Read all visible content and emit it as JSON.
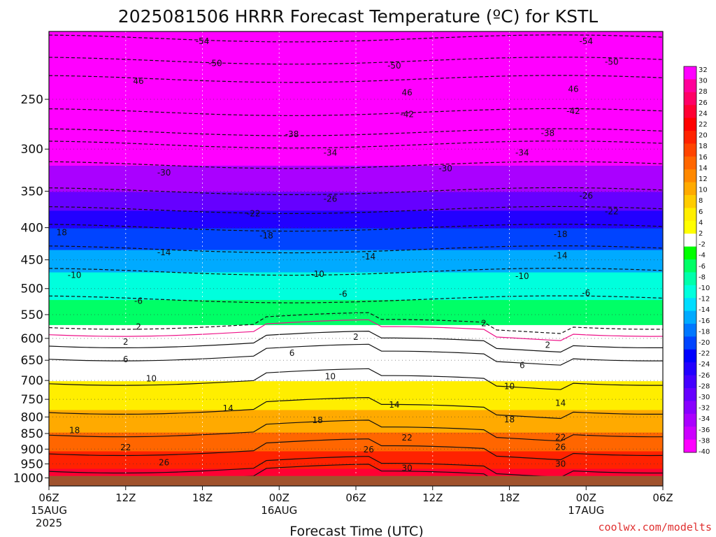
{
  "chart_data": {
    "type": "heatmap",
    "title": "2025081506 HRRR Forecast Temperature (ºC) for KSTL",
    "xlabel": "Forecast Time (UTC)",
    "ylabel": "",
    "x_ticks": [
      {
        "hour": 0,
        "label": "06Z",
        "sub": "15AUG",
        "sub2": "2025"
      },
      {
        "hour": 6,
        "label": "12Z",
        "sub": "",
        "sub2": ""
      },
      {
        "hour": 12,
        "label": "18Z",
        "sub": "",
        "sub2": ""
      },
      {
        "hour": 18,
        "label": "00Z",
        "sub": "16AUG",
        "sub2": ""
      },
      {
        "hour": 24,
        "label": "06Z",
        "sub": "",
        "sub2": ""
      },
      {
        "hour": 30,
        "label": "12Z",
        "sub": "",
        "sub2": ""
      },
      {
        "hour": 36,
        "label": "18Z",
        "sub": "",
        "sub2": ""
      },
      {
        "hour": 42,
        "label": "00Z",
        "sub": "17AUG",
        "sub2": ""
      },
      {
        "hour": 48,
        "label": "06Z",
        "sub": "",
        "sub2": ""
      }
    ],
    "xlim": [
      0,
      48
    ],
    "y_ticks": [
      250,
      300,
      350,
      400,
      450,
      500,
      550,
      600,
      650,
      700,
      750,
      800,
      850,
      900,
      950,
      1000
    ],
    "y_scale": "log-pressure",
    "ylim": [
      1030,
      195
    ],
    "ground_pressure": 993,
    "colorbar_levels": [
      32,
      30,
      28,
      26,
      24,
      22,
      20,
      18,
      16,
      14,
      12,
      10,
      8,
      6,
      4,
      2,
      -2,
      -4,
      -6,
      -8,
      -10,
      -12,
      -14,
      -16,
      -18,
      -20,
      -22,
      -24,
      -26,
      -28,
      -30,
      -32,
      -34,
      -36,
      -38,
      -40
    ],
    "colorbar_colors": [
      "#ff00ff",
      "#ff0099",
      "#ff0066",
      "#ff0033",
      "#ff0000",
      "#ff2200",
      "#ff4400",
      "#ff6600",
      "#ff8800",
      "#ffaa00",
      "#ffcc00",
      "#ffee00",
      "#ffff00",
      "#ffffff",
      "#00ff00",
      "#00ff66",
      "#00ffaa",
      "#00ffdd",
      "#00ddff",
      "#00aaff",
      "#0077ff",
      "#0044ff",
      "#0000ff",
      "#2200ff",
      "#4400ff",
      "#6600ff",
      "#8800ff",
      "#aa00ff",
      "#cc00ff",
      "#ff00ff"
    ],
    "isotherm_profile_hour0": [
      {
        "t": 30,
        "p": 993
      },
      {
        "t": 26,
        "p": 965
      },
      {
        "t": 22,
        "p": 905
      },
      {
        "t": 18,
        "p": 845
      },
      {
        "t": 14,
        "p": 778
      },
      {
        "t": 10,
        "p": 700
      },
      {
        "t": 6,
        "p": 640
      },
      {
        "t": 2,
        "p": 610
      },
      {
        "t": 0,
        "p": 585
      },
      {
        "t": -2,
        "p": 570
      },
      {
        "t": -6,
        "p": 520
      },
      {
        "t": -10,
        "p": 470
      },
      {
        "t": -14,
        "p": 433
      },
      {
        "t": -18,
        "p": 400
      },
      {
        "t": -22,
        "p": 375
      },
      {
        "t": -26,
        "p": 350
      },
      {
        "t": -30,
        "p": 318
      },
      {
        "t": -34,
        "p": 295
      },
      {
        "t": -38,
        "p": 282
      },
      {
        "t": -42,
        "p": 262
      },
      {
        "t": -46,
        "p": 232
      },
      {
        "t": -50,
        "p": 217
      },
      {
        "t": -54,
        "p": 200
      }
    ],
    "contour_labels": [
      {
        "text": "-54",
        "hour": 12,
        "p": 202
      },
      {
        "text": "-54",
        "hour": 42,
        "p": 202
      },
      {
        "text": "-50",
        "hour": 13,
        "p": 219
      },
      {
        "text": "-50",
        "hour": 27,
        "p": 221
      },
      {
        "text": "-50",
        "hour": 44,
        "p": 218
      },
      {
        "text": "46",
        "hour": 7,
        "p": 234
      },
      {
        "text": "46",
        "hour": 28,
        "p": 244
      },
      {
        "text": "46",
        "hour": 41,
        "p": 241
      },
      {
        "text": "-42",
        "hour": 28,
        "p": 264
      },
      {
        "text": "-42",
        "hour": 41,
        "p": 261
      },
      {
        "text": "-38",
        "hour": 19,
        "p": 284
      },
      {
        "text": "-38",
        "hour": 39,
        "p": 283
      },
      {
        "text": "-34",
        "hour": 22,
        "p": 304
      },
      {
        "text": "-34",
        "hour": 37,
        "p": 304
      },
      {
        "text": "-30",
        "hour": 9,
        "p": 327
      },
      {
        "text": "-30",
        "hour": 31,
        "p": 322
      },
      {
        "text": "-26",
        "hour": 22,
        "p": 360
      },
      {
        "text": "-26",
        "hour": 42,
        "p": 356
      },
      {
        "text": "-22",
        "hour": 16,
        "p": 380
      },
      {
        "text": "-22",
        "hour": 44,
        "p": 377
      },
      {
        "text": "18",
        "hour": 1,
        "p": 407
      },
      {
        "text": "-18",
        "hour": 17,
        "p": 412
      },
      {
        "text": "-18",
        "hour": 40,
        "p": 410
      },
      {
        "text": "-14",
        "hour": 9,
        "p": 438
      },
      {
        "text": "-14",
        "hour": 25,
        "p": 445
      },
      {
        "text": "-14",
        "hour": 40,
        "p": 443
      },
      {
        "text": "-10",
        "hour": 2,
        "p": 476
      },
      {
        "text": "-10",
        "hour": 21,
        "p": 474
      },
      {
        "text": "-10",
        "hour": 37,
        "p": 478
      },
      {
        "text": "-6",
        "hour": 7,
        "p": 523
      },
      {
        "text": "-6",
        "hour": 23,
        "p": 510
      },
      {
        "text": "-6",
        "hour": 42,
        "p": 508
      },
      {
        "text": "2",
        "hour": 7,
        "p": 575
      },
      {
        "text": "2",
        "hour": 34,
        "p": 568
      },
      {
        "text": "2",
        "hour": 6,
        "p": 608
      },
      {
        "text": "2",
        "hour": 24,
        "p": 597
      },
      {
        "text": "2",
        "hour": 39,
        "p": 615
      },
      {
        "text": "6",
        "hour": 6,
        "p": 648
      },
      {
        "text": "6",
        "hour": 19,
        "p": 633
      },
      {
        "text": "6",
        "hour": 37,
        "p": 662
      },
      {
        "text": "10",
        "hour": 8,
        "p": 695
      },
      {
        "text": "10",
        "hour": 22,
        "p": 690
      },
      {
        "text": "10",
        "hour": 36,
        "p": 715
      },
      {
        "text": "14",
        "hour": 14,
        "p": 775
      },
      {
        "text": "14",
        "hour": 27,
        "p": 765
      },
      {
        "text": "14",
        "hour": 40,
        "p": 760
      },
      {
        "text": "18",
        "hour": 2,
        "p": 840
      },
      {
        "text": "18",
        "hour": 21,
        "p": 810
      },
      {
        "text": "18",
        "hour": 36,
        "p": 808
      },
      {
        "text": "22",
        "hour": 6,
        "p": 895
      },
      {
        "text": "22",
        "hour": 28,
        "p": 863
      },
      {
        "text": "22",
        "hour": 40,
        "p": 862
      },
      {
        "text": "26",
        "hour": 9,
        "p": 945
      },
      {
        "text": "26",
        "hour": 25,
        "p": 902
      },
      {
        "text": "26",
        "hour": 40,
        "p": 893
      },
      {
        "text": "30",
        "hour": 28,
        "p": 965
      },
      {
        "text": "30",
        "hour": 40,
        "p": 950
      }
    ],
    "credit": "coolwx.com/modelts"
  }
}
